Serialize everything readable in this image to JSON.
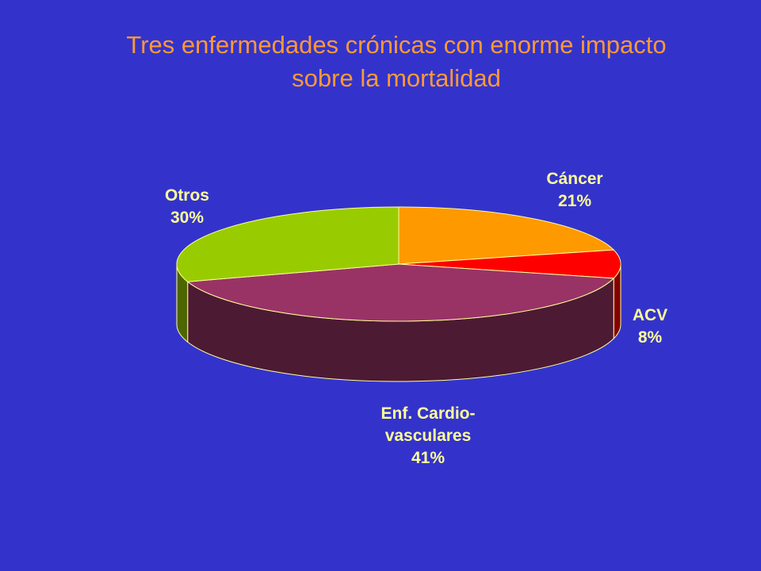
{
  "slide": {
    "title_line1": "Tres enfermedades crónicas con enorme impacto",
    "title_line2": "sobre la mortalidad",
    "title_color": "#ff9933",
    "background": "#3333cc",
    "label_color": "#ffff99"
  },
  "chart_data": {
    "type": "pie",
    "three_d": true,
    "title": "",
    "slices": [
      {
        "name": "Cáncer",
        "label_lines": [
          "Cáncer"
        ],
        "pct_label": "21%",
        "value": 21,
        "top": "#ff9900",
        "side": "#993300"
      },
      {
        "name": "ACV",
        "label_lines": [
          "ACV"
        ],
        "pct_label": "8%",
        "value": 8,
        "top": "#ff0000",
        "side": "#800000"
      },
      {
        "name": "Enf. Cardio-vasculares",
        "label_lines": [
          "Enf. Cardio-",
          "vasculares"
        ],
        "pct_label": "41%",
        "value": 41,
        "top": "#993366",
        "side": "#4d1a33"
      },
      {
        "name": "Otros",
        "label_lines": [
          "Otros"
        ],
        "pct_label": "30%",
        "value": 30,
        "top": "#99cc00",
        "side": "#4d6600"
      }
    ]
  }
}
